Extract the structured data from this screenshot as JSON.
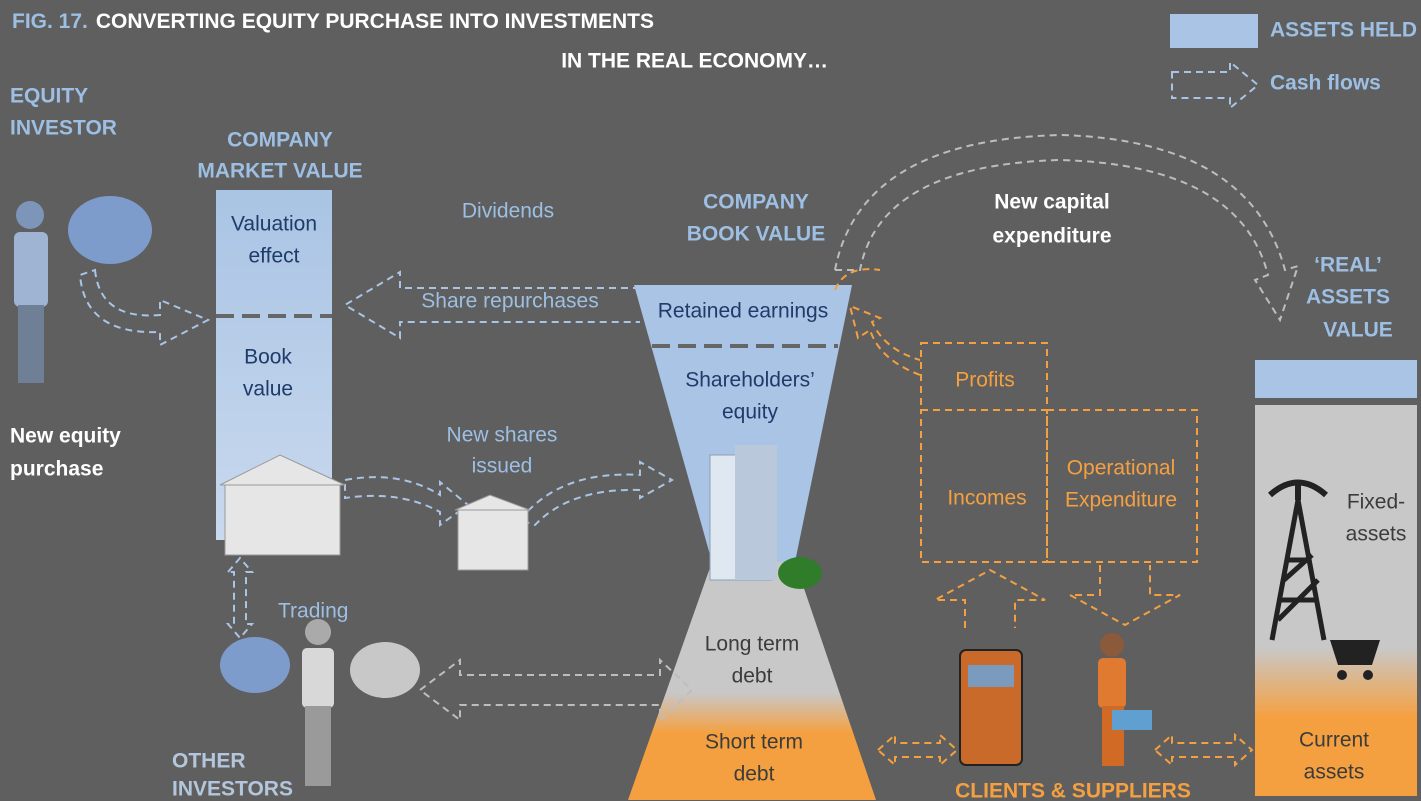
{
  "title": {
    "figure": "FIG. 17.",
    "lines": [
      "CONVERTING EQUITY PURCHASE INTO INVESTMENTS",
      "IN THE REAL ECONOMY…"
    ]
  },
  "legend": {
    "assets_held": "ASSETS HELD",
    "cash_flows": "Cash flows"
  },
  "equity_investor": [
    "EQUITY",
    "INVESTOR"
  ],
  "new_equity_purchase": [
    "New equity",
    "purchase"
  ],
  "market_value": {
    "heading": [
      "COMPANY",
      "MARKET VALUE"
    ],
    "valuation_effect": [
      "Valuation",
      "effect"
    ],
    "book_value": [
      "Book",
      "value"
    ]
  },
  "flows": {
    "dividends": "Dividends",
    "share_repurchases": "Share repurchases",
    "new_shares_issued": [
      "New shares",
      "issued"
    ],
    "trading": "Trading",
    "new_capital_expenditure": [
      "New capital",
      "expenditure"
    ]
  },
  "other_investors": [
    "OTHER",
    "INVESTORS"
  ],
  "book_value": {
    "heading": [
      "COMPANY",
      "BOOK VALUE"
    ],
    "retained_earnings": "Retained earnings",
    "shareholders_equity": [
      "Shareholders’",
      "equity"
    ],
    "long_term_debt": [
      "Long term",
      "debt"
    ],
    "short_term_debt": [
      "Short term",
      "debt"
    ]
  },
  "operations": {
    "profits": "Profits",
    "incomes": "Incomes",
    "operational_expenditure": [
      "Operational",
      "Expenditure"
    ],
    "clients_suppliers": "CLIENTS & SUPPLIERS"
  },
  "real_assets": {
    "heading": [
      "‘REAL’",
      "ASSETS",
      "VALUE"
    ],
    "fixed_assets": [
      "Fixed-",
      "assets"
    ],
    "current_assets": [
      "Current",
      "assets"
    ]
  }
}
